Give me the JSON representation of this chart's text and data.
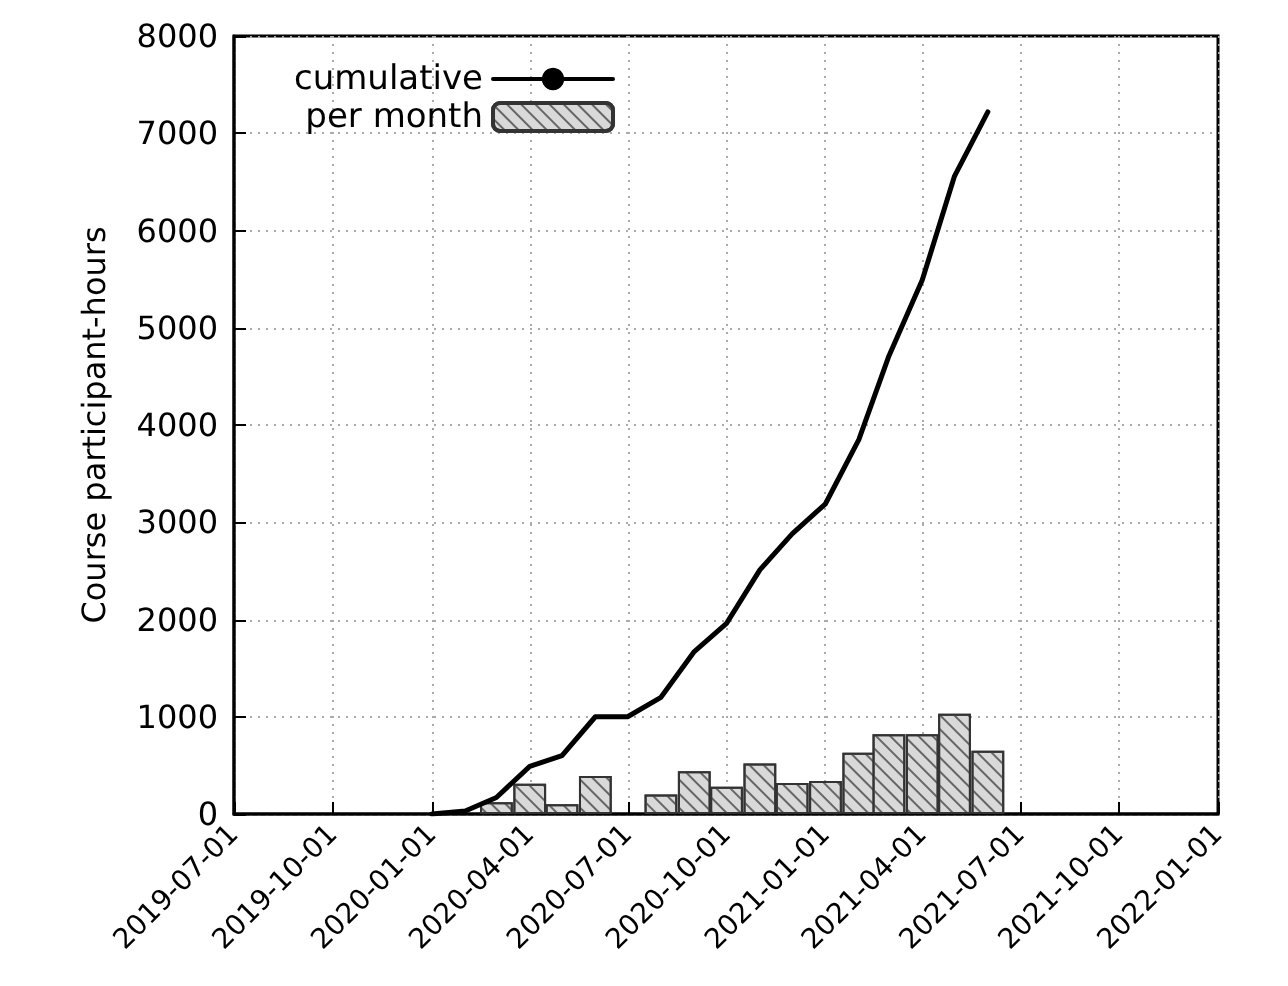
{
  "chart_data": {
    "type": "line",
    "ylabel": "Course participant-hours",
    "xlim": [
      "2019-07-01",
      "2022-01-01"
    ],
    "xticks": [
      "2019-07-01",
      "2019-10-01",
      "2020-01-01",
      "2020-04-01",
      "2020-07-01",
      "2020-10-01",
      "2021-01-01",
      "2021-04-01",
      "2021-07-01",
      "2021-10-01",
      "2022-01-01"
    ],
    "ylim": [
      0,
      8000
    ],
    "yticks": [
      0,
      1000,
      2000,
      3000,
      4000,
      5000,
      6000,
      7000,
      8000
    ],
    "grid": true,
    "legend": "top left",
    "line_style": "solid",
    "marker": "none",
    "series": [
      {
        "name": "cumulative",
        "color": "#000000",
        "x": [
          "2020-01-01",
          "2020-02-01",
          "2020-03-01",
          "2020-04-01",
          "2020-05-01",
          "2020-06-01",
          "2020-07-01",
          "2020-08-01",
          "2020-09-01",
          "2020-10-01",
          "2020-11-01",
          "2020-12-01",
          "2021-01-01",
          "2021-02-01",
          "2021-03-01",
          "2021-04-01",
          "2021-05-01",
          "2021-06-01"
        ],
        "values": [
          0,
          30,
          170,
          490,
          600,
          1000,
          1000,
          1200,
          1670,
          1960,
          2510,
          2880,
          3190,
          3850,
          4710,
          5490,
          6560,
          7220
        ]
      },
      {
        "name": "per month",
        "type": "bar",
        "color": "#d9d9d9",
        "x": [
          "2020-03-01",
          "2020-04-01",
          "2020-05-01",
          "2020-06-01",
          "2020-08-01",
          "2020-09-01",
          "2020-10-01",
          "2020-11-01",
          "2020-12-01",
          "2021-01-01",
          "2021-02-01",
          "2021-03-01",
          "2021-04-01",
          "2021-05-01",
          "2021-06-01"
        ],
        "values": [
          120,
          310,
          100,
          390,
          200,
          440,
          280,
          520,
          320,
          340,
          630,
          820,
          820,
          1030,
          650
        ]
      }
    ]
  }
}
